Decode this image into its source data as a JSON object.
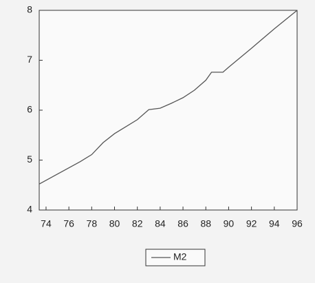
{
  "chart_data": {
    "type": "line",
    "x": [
      73.4,
      77,
      78,
      79,
      80,
      81,
      82,
      83,
      84,
      85,
      86,
      87,
      88,
      88.5,
      89.5,
      90,
      92,
      94,
      96
    ],
    "series": [
      {
        "name": "M2",
        "color": "#555555",
        "values": [
          4.52,
          4.97,
          5.11,
          5.35,
          5.53,
          5.67,
          5.81,
          6.01,
          6.04,
          6.14,
          6.25,
          6.4,
          6.6,
          6.76,
          6.76,
          6.86,
          7.24,
          7.63,
          8.0
        ]
      }
    ],
    "xlim": [
      73.4,
      96
    ],
    "xticks": [
      74,
      76,
      78,
      80,
      82,
      84,
      86,
      88,
      90,
      92,
      94,
      96
    ],
    "ylim": [
      4,
      8
    ],
    "yticks": [
      4,
      5,
      6,
      7,
      8
    ],
    "legend": "bottom"
  }
}
